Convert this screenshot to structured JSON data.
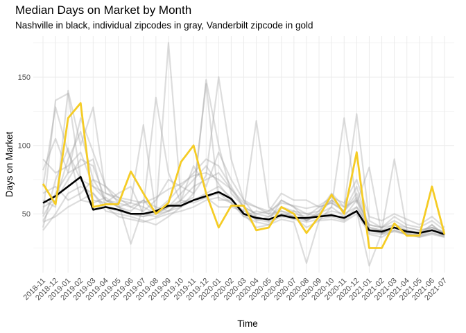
{
  "chart_data": {
    "type": "line",
    "title": "Median Days on Market by Month",
    "subtitle": "Nashville in black, individual zipcodes in gray, Vanderbilt zipcode in gold",
    "xlabel": "Time",
    "ylabel": "Days on Market",
    "ylim": [
      7,
      180
    ],
    "yticks": [
      50,
      100,
      150
    ],
    "grid": true,
    "categories": [
      "2018-11",
      "2018-12",
      "2019-01",
      "2019-02",
      "2019-03",
      "2019-04",
      "2019-05",
      "2019-06",
      "2019-07",
      "2019-08",
      "2019-09",
      "2019-10",
      "2019-11",
      "2019-12",
      "2020-01",
      "2020-02",
      "2020-03",
      "2020-04",
      "2020-05",
      "2020-06",
      "2020-07",
      "2020-08",
      "2020-09",
      "2020-10",
      "2020-11",
      "2020-12",
      "2021-01",
      "2021-02",
      "2021-03",
      "2021-04",
      "2021-05",
      "2021-06",
      "2021-07"
    ],
    "colors": {
      "nashville": "#000000",
      "zipcode": "#9e9e9e",
      "vanderbilt": "#f5cc25"
    },
    "series": [
      {
        "role": "nashville",
        "values": [
          58,
          63,
          70,
          77,
          53,
          55,
          53,
          50,
          50,
          52,
          56,
          56,
          60,
          63,
          66,
          61,
          50,
          47,
          46,
          49,
          47,
          47,
          48,
          49,
          47,
          52,
          38,
          37,
          40,
          37,
          36,
          38,
          35
        ]
      },
      {
        "role": "vanderbilt",
        "values": [
          72,
          57,
          120,
          131,
          55,
          57,
          57,
          81,
          65,
          50,
          58,
          88,
          100,
          65,
          40,
          56,
          56,
          38,
          40,
          55,
          50,
          36,
          48,
          64,
          50,
          95,
          25,
          25,
          43,
          34,
          34,
          70,
          35
        ]
      },
      {
        "role": "zipcode",
        "values": [
          45,
          60,
          90,
          110,
          75,
          60,
          55,
          50,
          48,
          52,
          60,
          70,
          80,
          90,
          85,
          70,
          55,
          50,
          48,
          55,
          52,
          50,
          48,
          52,
          50,
          55,
          42,
          40,
          45,
          40,
          38,
          40,
          36
        ]
      },
      {
        "role": "zipcode",
        "values": [
          82,
          105,
          80,
          120,
          95,
          70,
          62,
          55,
          60,
          50,
          175,
          60,
          85,
          70,
          95,
          75,
          60,
          48,
          45,
          60,
          55,
          45,
          50,
          60,
          52,
          70,
          40,
          38,
          42,
          38,
          36,
          42,
          34
        ]
      },
      {
        "role": "zipcode",
        "values": [
          40,
          75,
          98,
          60,
          65,
          52,
          50,
          48,
          45,
          42,
          48,
          55,
          65,
          145,
          60,
          60,
          50,
          40,
          42,
          50,
          48,
          40,
          45,
          55,
          48,
          60,
          35,
          33,
          38,
          35,
          33,
          36,
          33
        ]
      },
      {
        "role": "zipcode",
        "values": [
          50,
          133,
          138,
          75,
          70,
          60,
          55,
          52,
          60,
          55,
          52,
          60,
          70,
          75,
          80,
          68,
          55,
          45,
          48,
          52,
          50,
          48,
          55,
          58,
          52,
          65,
          38,
          36,
          40,
          36,
          35,
          38,
          35
        ]
      },
      {
        "role": "zipcode",
        "values": [
          60,
          55,
          140,
          100,
          128,
          65,
          60,
          58,
          55,
          135,
          80,
          58,
          60,
          65,
          70,
          62,
          48,
          52,
          50,
          60,
          55,
          50,
          52,
          65,
          55,
          123,
          45,
          40,
          48,
          42,
          40,
          45,
          38
        ]
      },
      {
        "role": "zipcode",
        "values": [
          48,
          65,
          80,
          85,
          90,
          55,
          52,
          50,
          48,
          50,
          55,
          60,
          58,
          62,
          55,
          55,
          52,
          118,
          55,
          48,
          52,
          45,
          50,
          55,
          120,
          58,
          84,
          35,
          40,
          38,
          36,
          40,
          36
        ]
      },
      {
        "role": "zipcode",
        "values": [
          70,
          128,
          95,
          75,
          60,
          58,
          65,
          70,
          50,
          48,
          52,
          58,
          62,
          148,
          100,
          65,
          55,
          50,
          52,
          65,
          60,
          60,
          55,
          58,
          52,
          62,
          40,
          38,
          90,
          38,
          35,
          42,
          35
        ]
      },
      {
        "role": "zipcode",
        "values": [
          55,
          60,
          75,
          90,
          85,
          60,
          58,
          55,
          52,
          60,
          75,
          70,
          65,
          78,
          150,
          90,
          60,
          55,
          50,
          52,
          48,
          45,
          52,
          60,
          55,
          60,
          42,
          40,
          42,
          40,
          38,
          40,
          37
        ]
      },
      {
        "role": "zipcode",
        "values": [
          65,
          70,
          60,
          65,
          75,
          70,
          58,
          28,
          55,
          50,
          55,
          65,
          75,
          85,
          72,
          60,
          52,
          48,
          45,
          50,
          48,
          46,
          48,
          50,
          46,
          55,
          38,
          36,
          40,
          36,
          34,
          38,
          34
        ]
      },
      {
        "role": "zipcode",
        "values": [
          44,
          48,
          55,
          60,
          58,
          62,
          55,
          58,
          115,
          50,
          52,
          55,
          60,
          62,
          65,
          58,
          50,
          46,
          44,
          48,
          46,
          44,
          46,
          48,
          45,
          52,
          12,
          36,
          38,
          35,
          34,
          36,
          34
        ]
      },
      {
        "role": "zipcode",
        "values": [
          38,
          50,
          65,
          70,
          65,
          55,
          48,
          46,
          44,
          47,
          50,
          52,
          55,
          60,
          62,
          58,
          48,
          44,
          42,
          46,
          44,
          14,
          45,
          46,
          44,
          50,
          36,
          35,
          37,
          35,
          33,
          35,
          33
        ]
      },
      {
        "role": "zipcode",
        "values": [
          90,
          80,
          85,
          95,
          70,
          65,
          62,
          60,
          58,
          62,
          68,
          72,
          78,
          80,
          75,
          68,
          58,
          55,
          52,
          58,
          56,
          54,
          56,
          62,
          58,
          75,
          48,
          45,
          50,
          46,
          42,
          48,
          40
        ]
      }
    ]
  }
}
